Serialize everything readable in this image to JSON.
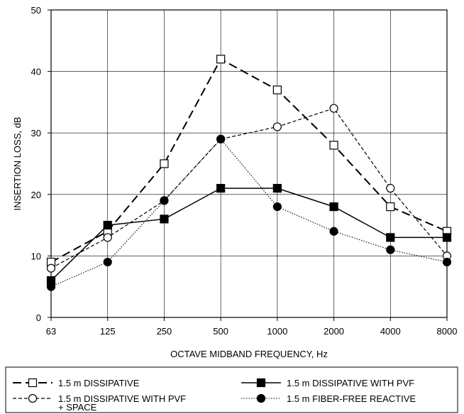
{
  "chart_data": {
    "type": "line",
    "title": "",
    "xlabel": "OCTAVE MIDBAND FREQUENCY, Hz",
    "ylabel": "INSERTION LOSS, dB",
    "categories": [
      "63",
      "125",
      "250",
      "500",
      "1000",
      "2000",
      "4000",
      "8000"
    ],
    "ylim": [
      0,
      50
    ],
    "yticks": [
      "0",
      "10",
      "20",
      "30",
      "40",
      "50"
    ],
    "grid": true,
    "legend_position": "bottom",
    "series": [
      {
        "name": "1.5 m DISSIPATIVE",
        "values": [
          9,
          14,
          25,
          42,
          37,
          28,
          18,
          14
        ],
        "line_style": "long-dash",
        "marker": "open-square"
      },
      {
        "name": "1.5 m DISSIPATIVE WITH PVF",
        "values": [
          6,
          15,
          16,
          21,
          21,
          18,
          13,
          13
        ],
        "line_style": "solid",
        "marker": "filled-square"
      },
      {
        "name": "1.5 m DISSIPATIVE WITH PVF + SPACE",
        "name_lines": [
          "1.5 m DISSIPATIVE WITH PVF",
          "+ SPACE"
        ],
        "values": [
          8,
          13,
          19,
          29,
          31,
          34,
          21,
          10
        ],
        "line_style": "short-dash",
        "marker": "open-circle"
      },
      {
        "name": "1.5 m FIBER-FREE REACTIVE",
        "values": [
          5,
          9,
          19,
          29,
          18,
          14,
          11,
          9
        ],
        "line_style": "dotted",
        "marker": "filled-circle"
      }
    ]
  }
}
